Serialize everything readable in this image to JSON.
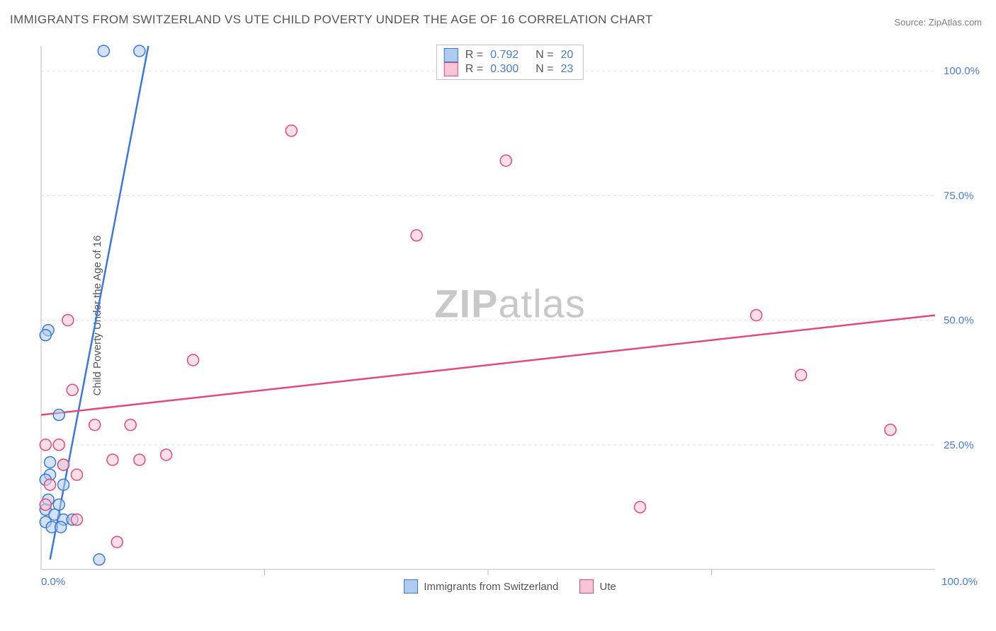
{
  "title": "IMMIGRANTS FROM SWITZERLAND VS UTE CHILD POVERTY UNDER THE AGE OF 16 CORRELATION CHART",
  "source": "Source: ZipAtlas.com",
  "ylabel": "Child Poverty Under the Age of 16",
  "watermark_bold": "ZIP",
  "watermark_rest": "atlas",
  "chart": {
    "type": "scatter",
    "background_color": "#ffffff",
    "grid_color": "#dddddd",
    "axis_color": "#bbbbbb",
    "xlim": [
      0,
      100
    ],
    "ylim": [
      0,
      105
    ],
    "y_gridlines": [
      25,
      50,
      75,
      100
    ],
    "x_ticks_minor": [
      25,
      50,
      75
    ],
    "x_axis_labels": [
      {
        "value": 0,
        "label": "0.0%"
      },
      {
        "value": 100,
        "label": "100.0%"
      }
    ],
    "y_axis_labels": [
      {
        "value": 25,
        "label": "25.0%"
      },
      {
        "value": 50,
        "label": "50.0%"
      },
      {
        "value": 75,
        "label": "75.0%"
      },
      {
        "value": 100,
        "label": "100.0%"
      }
    ],
    "marker_radius": 8,
    "marker_stroke_width": 1.5,
    "line_width": 2.5,
    "series": [
      {
        "id": "swiss",
        "label": "Immigrants from Switzerland",
        "R": "0.792",
        "N": "20",
        "color_stroke": "#3b78d8",
        "color_fill": "#aecbf0",
        "swatch_fill": "#aecbf0",
        "swatch_stroke": "#3b78d8",
        "trendline": {
          "x1": 1,
          "y1": 2,
          "x2": 12,
          "y2": 105
        },
        "points": [
          {
            "x": 7,
            "y": 104
          },
          {
            "x": 11,
            "y": 104
          },
          {
            "x": 0.8,
            "y": 48
          },
          {
            "x": 0.5,
            "y": 47
          },
          {
            "x": 2,
            "y": 31
          },
          {
            "x": 1,
            "y": 21.5
          },
          {
            "x": 2.5,
            "y": 21
          },
          {
            "x": 1,
            "y": 19
          },
          {
            "x": 0.5,
            "y": 18
          },
          {
            "x": 2.5,
            "y": 17
          },
          {
            "x": 0.8,
            "y": 14
          },
          {
            "x": 2,
            "y": 13
          },
          {
            "x": 0.5,
            "y": 12
          },
          {
            "x": 1.5,
            "y": 11
          },
          {
            "x": 2.5,
            "y": 10
          },
          {
            "x": 3.5,
            "y": 10
          },
          {
            "x": 0.5,
            "y": 9.5
          },
          {
            "x": 1.2,
            "y": 8.5
          },
          {
            "x": 2.2,
            "y": 8.5
          },
          {
            "x": 6.5,
            "y": 2
          }
        ]
      },
      {
        "id": "ute",
        "label": "Ute",
        "R": "0.300",
        "N": "23",
        "color_stroke": "#e34a78",
        "color_fill": "#f7c5d5",
        "swatch_fill": "#f7c5d5",
        "swatch_stroke": "#e34a78",
        "trendline": {
          "x1": 0,
          "y1": 31,
          "x2": 100,
          "y2": 51
        },
        "points": [
          {
            "x": 28,
            "y": 88
          },
          {
            "x": 52,
            "y": 82
          },
          {
            "x": 42,
            "y": 67
          },
          {
            "x": 3,
            "y": 50
          },
          {
            "x": 80,
            "y": 51
          },
          {
            "x": 17,
            "y": 42
          },
          {
            "x": 85,
            "y": 39
          },
          {
            "x": 3.5,
            "y": 36
          },
          {
            "x": 6,
            "y": 29
          },
          {
            "x": 10,
            "y": 29
          },
          {
            "x": 95,
            "y": 28
          },
          {
            "x": 0.5,
            "y": 25
          },
          {
            "x": 2,
            "y": 25
          },
          {
            "x": 14,
            "y": 23
          },
          {
            "x": 8,
            "y": 22
          },
          {
            "x": 11,
            "y": 22
          },
          {
            "x": 2.5,
            "y": 21
          },
          {
            "x": 4,
            "y": 19
          },
          {
            "x": 1,
            "y": 17
          },
          {
            "x": 67,
            "y": 12.5
          },
          {
            "x": 4,
            "y": 10
          },
          {
            "x": 8.5,
            "y": 5.5
          },
          {
            "x": 0.5,
            "y": 13
          }
        ]
      }
    ]
  },
  "legend_top_labels": {
    "R_prefix": "R  =",
    "N_prefix": "N  ="
  }
}
